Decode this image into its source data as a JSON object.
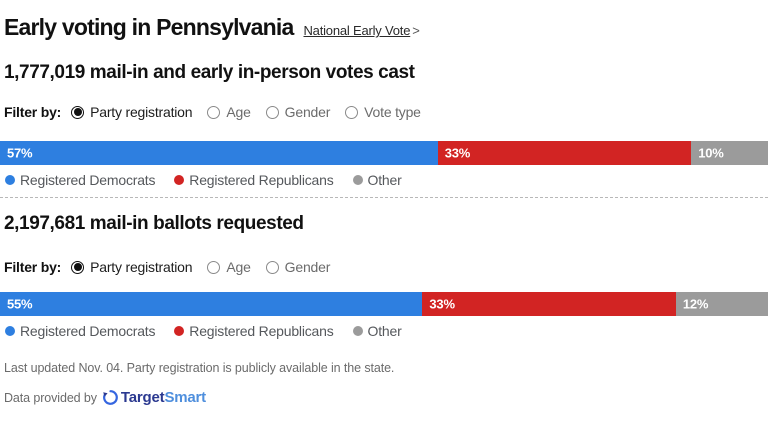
{
  "header": {
    "title": "Early voting in Pennsylvania",
    "link": "National Early Vote",
    "link_arrow": ">"
  },
  "sections": [
    {
      "headline": "1,777,019 mail-in and early in-person votes cast",
      "filter": {
        "label": "Filter by:",
        "options": [
          {
            "label": "Party registration",
            "selected": true
          },
          {
            "label": "Age",
            "selected": false
          },
          {
            "label": "Gender",
            "selected": false
          },
          {
            "label": "Vote type",
            "selected": false
          }
        ]
      }
    },
    {
      "headline": "2,197,681 mail-in ballots requested",
      "filter": {
        "label": "Filter by:",
        "options": [
          {
            "label": "Party registration",
            "selected": true
          },
          {
            "label": "Age",
            "selected": false
          },
          {
            "label": "Gender",
            "selected": false
          }
        ]
      }
    }
  ],
  "chart_data": [
    {
      "type": "bar",
      "variant": "stacked-horizontal-100pct",
      "title": "1,777,019 mail-in and early in-person votes cast",
      "categories": [
        "Registered Democrats",
        "Registered Republicans",
        "Other"
      ],
      "values": [
        57,
        33,
        10
      ],
      "labels": [
        "57%",
        "33%",
        "10%"
      ],
      "unit": "%",
      "colors": [
        "#2e7fe0",
        "#d22423",
        "#9b9b9b"
      ],
      "xlim": [
        0,
        100
      ],
      "legend_position": "bottom",
      "grid": false
    },
    {
      "type": "bar",
      "variant": "stacked-horizontal-100pct",
      "title": "2,197,681 mail-in ballots requested",
      "categories": [
        "Registered Democrats",
        "Registered Republicans",
        "Other"
      ],
      "values": [
        55,
        33,
        12
      ],
      "labels": [
        "55%",
        "33%",
        "12%"
      ],
      "unit": "%",
      "colors": [
        "#2e7fe0",
        "#d22423",
        "#9b9b9b"
      ],
      "xlim": [
        0,
        100
      ],
      "legend_position": "bottom",
      "grid": false
    }
  ],
  "footer": {
    "note": "Last updated Nov. 04. Party registration is publicly available in the state.",
    "provided_by": "Data provided by",
    "brand": {
      "part1": "Target",
      "part2": "Smart",
      "part1_color": "#2b3990",
      "part2_color": "#4f8fdd",
      "icon_color": "#3566e0"
    }
  }
}
